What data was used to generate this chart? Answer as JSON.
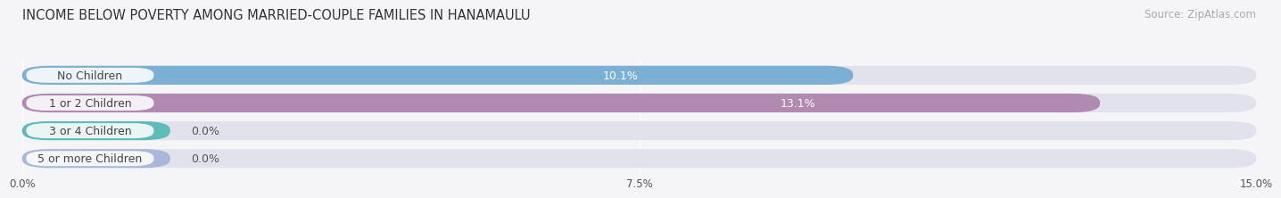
{
  "title": "INCOME BELOW POVERTY AMONG MARRIED-COUPLE FAMILIES IN HANAMAULU",
  "source": "Source: ZipAtlas.com",
  "categories": [
    "No Children",
    "1 or 2 Children",
    "3 or 4 Children",
    "5 or more Children"
  ],
  "values": [
    10.1,
    13.1,
    0.0,
    0.0
  ],
  "bar_colors": [
    "#7bafd4",
    "#b08ab0",
    "#5bbcb8",
    "#a9b8d8"
  ],
  "bar_bg_color": "#e2e2ec",
  "xlim": [
    0,
    15.0
  ],
  "xticks": [
    0.0,
    7.5,
    15.0
  ],
  "xticklabels": [
    "0.0%",
    "7.5%",
    "15.0%"
  ],
  "title_fontsize": 10.5,
  "source_fontsize": 8.5,
  "label_fontsize": 9,
  "value_fontsize": 9,
  "background_color": "#f5f5f8",
  "bar_height": 0.68,
  "small_bar_width": 1.8
}
